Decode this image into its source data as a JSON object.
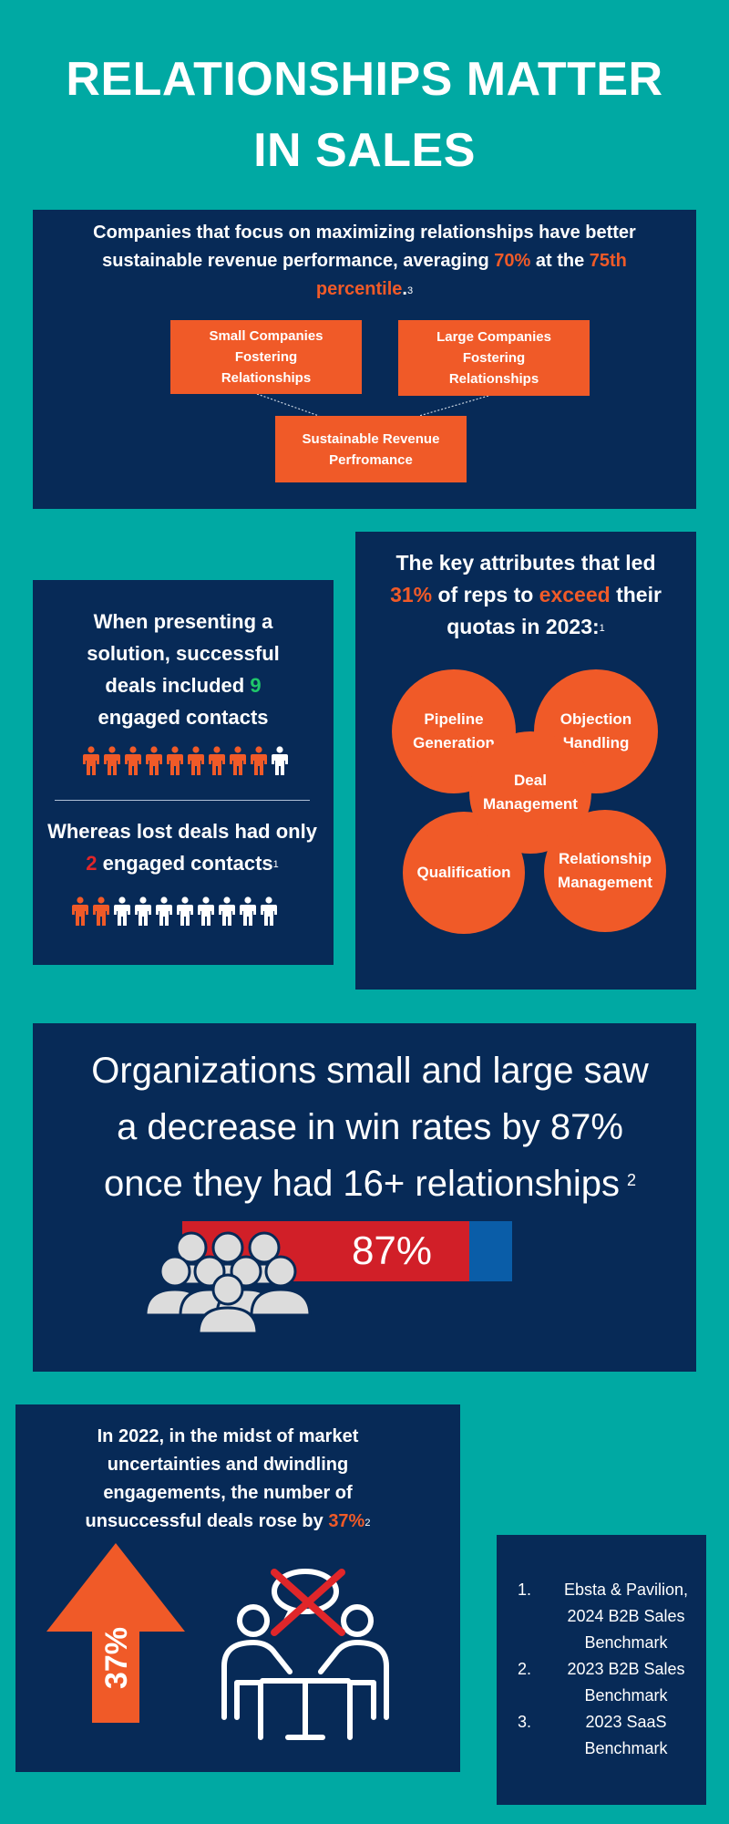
{
  "title": {
    "line1": "RELATIONSHIPS MATTER",
    "line2": "IN SALES"
  },
  "panel1": {
    "text_before": "Companies that focus on maximizing relationships have better sustainable revenue performance, averaging ",
    "highlight_pct": "70%",
    "text_mid": " at the ",
    "highlight_pctile": "75th percentile",
    "text_end": ".",
    "footnote": "3",
    "boxes": {
      "small": "Small Companies Fostering Relationships",
      "large": "Large Companies Fostering Relationships",
      "result": "Sustainable Revenue Perfromance"
    }
  },
  "panel2": {
    "text_before": "When presenting a solution,  successful deals included ",
    "count": "9",
    "text_after": " engaged contacts",
    "won_engaged": 9,
    "won_total": 10,
    "lost_before": "Whereas lost  deals had only ",
    "lost_count": "2",
    "lost_after": " engaged contacts",
    "footnote": "1",
    "lost_engaged": 2,
    "lost_total": 10
  },
  "panel3": {
    "text1": "The key attributes that led ",
    "pct": "31%",
    "text2": " of reps to ",
    "exceed": "exceed",
    "text3": " their quotas in 2023:",
    "footnote": "1",
    "attributes": {
      "pipeline": "Pipeline Generation",
      "objection": "Objection Handling",
      "deal": "Deal Management",
      "qualification": "Qualification",
      "relationship": "Relationship Management"
    }
  },
  "panel4": {
    "line1": "Organizations small and large saw",
    "line2": "a decrease in win rates by 87%",
    "line3": "once they had 16+ relationships",
    "footnote": "2",
    "bar_label": "87%",
    "bar_value": 0.87
  },
  "panel5": {
    "text": "In 2022, in the midst of market uncertainties and dwindling engagements, the number of unsuccessful deals rose by ",
    "pct": "37%",
    "footnote": "2",
    "arrow_label": "37%"
  },
  "references": [
    {
      "num": "1.",
      "text": "Ebsta & Pavilion, 2024 B2B Sales Benchmark"
    },
    {
      "num": "2.",
      "text": "2023 B2B Sales Benchmark"
    },
    {
      "num": "3.",
      "text": "2023 SaaS Benchmark"
    }
  ],
  "colors": {
    "background": "#00A9A3",
    "panel": "#072A57",
    "accent": "#F05A28",
    "green": "#1FC76A",
    "red": "#E0262A",
    "blue_bar": "#0A5DA8",
    "icon_gray": "#DCDCDC"
  },
  "icons": [
    "person-icon",
    "group-icon",
    "up-arrow-icon",
    "meeting-table-icon",
    "cross-icon"
  ]
}
